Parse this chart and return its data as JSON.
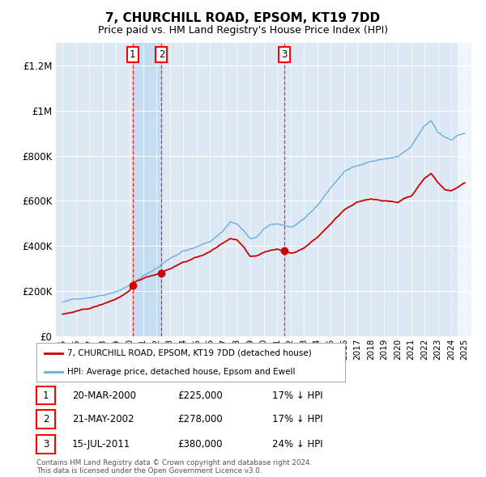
{
  "title": "7, CHURCHILL ROAD, EPSOM, KT19 7DD",
  "subtitle": "Price paid vs. HM Land Registry's House Price Index (HPI)",
  "background_color": "#dce9f5",
  "ylim": [
    0,
    1300000
  ],
  "yticks": [
    0,
    200000,
    400000,
    600000,
    800000,
    1000000,
    1200000
  ],
  "ytick_labels": [
    "£0",
    "£200K",
    "£400K",
    "£600K",
    "£800K",
    "£1M",
    "£1.2M"
  ],
  "xmin": 1994.5,
  "xmax": 2025.5,
  "xticks_start": 1995,
  "xticks_end": 2025,
  "sales": [
    {
      "num": 1,
      "year": 2000.22,
      "price": 225000,
      "date": "20-MAR-2000",
      "pct": "17%"
    },
    {
      "num": 2,
      "year": 2002.38,
      "price": 278000,
      "date": "21-MAY-2002",
      "pct": "17%"
    },
    {
      "num": 3,
      "year": 2011.54,
      "price": 380000,
      "date": "15-JUL-2011",
      "pct": "24%"
    }
  ],
  "legend_line1": "7, CHURCHILL ROAD, EPSOM, KT19 7DD (detached house)",
  "legend_line2": "HPI: Average price, detached house, Epsom and Ewell",
  "footer_line1": "Contains HM Land Registry data © Crown copyright and database right 2024.",
  "footer_line2": "This data is licensed under the Open Government Licence v3.0.",
  "table_rows": [
    [
      "1",
      "20-MAR-2000",
      "£225,000",
      "17% ↓ HPI"
    ],
    [
      "2",
      "21-MAY-2002",
      "£278,000",
      "17% ↓ HPI"
    ],
    [
      "3",
      "15-JUL-2011",
      "£380,000",
      "24% ↓ HPI"
    ]
  ],
  "red_color": "#cc0000",
  "blue_color": "#6aade4",
  "grid_color": "#ffffff",
  "title_fontsize": 11,
  "subtitle_fontsize": 9,
  "hpi_points": [
    [
      1995.0,
      152000
    ],
    [
      1996.0,
      163000
    ],
    [
      1997.0,
      175000
    ],
    [
      1998.0,
      188000
    ],
    [
      1999.0,
      208000
    ],
    [
      2000.0,
      235000
    ],
    [
      2001.0,
      275000
    ],
    [
      2002.0,
      310000
    ],
    [
      2003.0,
      355000
    ],
    [
      2004.0,
      390000
    ],
    [
      2005.0,
      405000
    ],
    [
      2006.0,
      430000
    ],
    [
      2007.0,
      480000
    ],
    [
      2007.5,
      520000
    ],
    [
      2008.0,
      510000
    ],
    [
      2008.5,
      480000
    ],
    [
      2009.0,
      440000
    ],
    [
      2009.5,
      450000
    ],
    [
      2010.0,
      480000
    ],
    [
      2010.5,
      500000
    ],
    [
      2011.0,
      505000
    ],
    [
      2011.5,
      500000
    ],
    [
      2012.0,
      490000
    ],
    [
      2012.5,
      500000
    ],
    [
      2013.0,
      520000
    ],
    [
      2014.0,
      580000
    ],
    [
      2015.0,
      660000
    ],
    [
      2016.0,
      730000
    ],
    [
      2017.0,
      760000
    ],
    [
      2018.0,
      780000
    ],
    [
      2019.0,
      790000
    ],
    [
      2020.0,
      800000
    ],
    [
      2021.0,
      840000
    ],
    [
      2022.0,
      930000
    ],
    [
      2022.5,
      950000
    ],
    [
      2023.0,
      900000
    ],
    [
      2023.5,
      880000
    ],
    [
      2024.0,
      870000
    ],
    [
      2024.5,
      890000
    ],
    [
      2025.0,
      900000
    ]
  ],
  "prop_points": [
    [
      1995.0,
      98000
    ],
    [
      1996.0,
      108000
    ],
    [
      1997.0,
      120000
    ],
    [
      1998.0,
      138000
    ],
    [
      1999.0,
      162000
    ],
    [
      2000.0,
      195000
    ],
    [
      2000.22,
      225000
    ],
    [
      2001.0,
      248000
    ],
    [
      2002.0,
      268000
    ],
    [
      2002.38,
      278000
    ],
    [
      2003.0,
      295000
    ],
    [
      2004.0,
      325000
    ],
    [
      2005.0,
      345000
    ],
    [
      2006.0,
      370000
    ],
    [
      2007.0,
      410000
    ],
    [
      2007.5,
      430000
    ],
    [
      2008.0,
      425000
    ],
    [
      2008.5,
      395000
    ],
    [
      2009.0,
      355000
    ],
    [
      2009.5,
      360000
    ],
    [
      2010.0,
      375000
    ],
    [
      2010.5,
      385000
    ],
    [
      2011.0,
      390000
    ],
    [
      2011.54,
      380000
    ],
    [
      2012.0,
      370000
    ],
    [
      2012.5,
      380000
    ],
    [
      2013.0,
      395000
    ],
    [
      2014.0,
      440000
    ],
    [
      2015.0,
      500000
    ],
    [
      2016.0,
      560000
    ],
    [
      2017.0,
      590000
    ],
    [
      2018.0,
      605000
    ],
    [
      2019.0,
      600000
    ],
    [
      2020.0,
      590000
    ],
    [
      2020.5,
      610000
    ],
    [
      2021.0,
      620000
    ],
    [
      2022.0,
      700000
    ],
    [
      2022.5,
      720000
    ],
    [
      2023.0,
      680000
    ],
    [
      2023.5,
      650000
    ],
    [
      2024.0,
      645000
    ],
    [
      2024.5,
      660000
    ],
    [
      2025.0,
      680000
    ]
  ]
}
